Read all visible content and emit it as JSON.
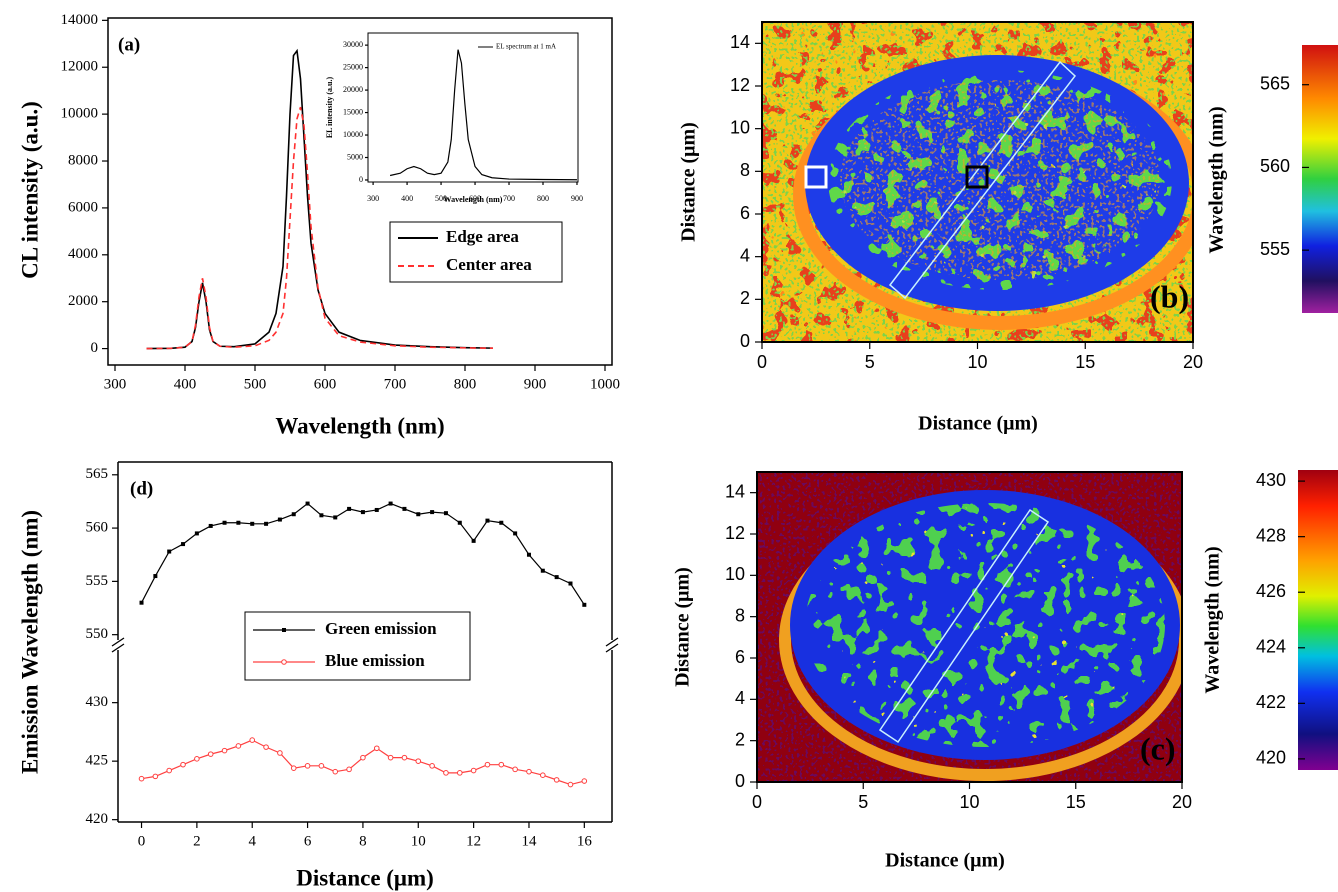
{
  "chart_data": [
    {
      "type": "line",
      "panel_label": "(a)",
      "xlabel": "Wavelength (nm)",
      "ylabel": "CL intensity (a.u.)",
      "x": [
        345,
        380,
        400,
        410,
        415,
        420,
        425,
        430,
        435,
        440,
        450,
        470,
        500,
        520,
        530,
        540,
        545,
        550,
        555,
        560,
        565,
        570,
        575,
        580,
        590,
        600,
        620,
        650,
        700,
        750,
        800,
        840
      ],
      "series": [
        {
          "name": "Edge area",
          "color": "#000000",
          "dash": "solid",
          "values": [
            0,
            10,
            60,
            300,
            900,
            2000,
            2800,
            2000,
            800,
            300,
            100,
            80,
            200,
            700,
            1500,
            3500,
            6500,
            10000,
            12500,
            12700,
            11500,
            9000,
            6500,
            4500,
            2500,
            1500,
            700,
            350,
            150,
            80,
            40,
            20
          ]
        },
        {
          "name": "Center area",
          "color": "#ff3030",
          "dash": "dashed",
          "values": [
            0,
            10,
            60,
            300,
            1000,
            2200,
            3000,
            2200,
            900,
            300,
            100,
            60,
            120,
            350,
            700,
            1500,
            3000,
            5500,
            8000,
            9800,
            10300,
            9500,
            7500,
            5200,
            2600,
            1300,
            550,
            280,
            120,
            60,
            30,
            15
          ]
        }
      ],
      "xlim": [
        290,
        1010
      ],
      "ylim": [
        -700,
        14100
      ],
      "xticks": [
        300,
        400,
        500,
        600,
        700,
        800,
        900,
        1000
      ],
      "yticks": [
        0,
        2000,
        4000,
        6000,
        8000,
        10000,
        12000,
        14000
      ],
      "legend": "center-right",
      "inset": {
        "type": "line",
        "xlabel": "Wavelength (nm)",
        "ylabel": "EL intensity (a.u.)",
        "x": [
          350,
          380,
          400,
          420,
          440,
          460,
          480,
          500,
          520,
          530,
          540,
          550,
          560,
          570,
          580,
          600,
          620,
          650,
          700,
          800,
          900
        ],
        "series": [
          {
            "name": "EL spectrum at 1 mA",
            "color": "#000000",
            "values": [
              1000,
              1500,
              2500,
              3000,
              2500,
              1500,
              1200,
              1500,
              4000,
              9000,
              20000,
              29000,
              26000,
              17000,
              9000,
              3000,
              1200,
              500,
              200,
              100,
              50
            ]
          }
        ],
        "xlim": [
          285,
          903
        ],
        "ylim": [
          -450,
          32700
        ],
        "xticks": [
          300,
          400,
          500,
          600,
          700,
          800,
          900
        ],
        "yticks": [
          0,
          5000,
          10000,
          15000,
          20000,
          25000,
          30000
        ]
      }
    },
    {
      "type": "heatmap",
      "panel_label": "(b)",
      "xlabel": "Distance (μm)",
      "ylabel": "Distance (μm)",
      "xlim": [
        0,
        20
      ],
      "ylim": [
        0,
        15
      ],
      "xticks": [
        0,
        5,
        10,
        15,
        20
      ],
      "yticks": [
        0,
        2,
        4,
        6,
        8,
        10,
        12,
        14
      ],
      "colorbar": {
        "label": "Wavelength (nm)",
        "lim": [
          551.2,
          567.4
        ],
        "ticks": [
          555,
          560,
          565
        ]
      }
    },
    {
      "type": "heatmap",
      "panel_label": "(c)",
      "xlabel": "Distance (μm)",
      "ylabel": "Distance (μm)",
      "xlim": [
        0,
        20
      ],
      "ylim": [
        0,
        15
      ],
      "xticks": [
        0,
        5,
        10,
        15,
        20
      ],
      "yticks": [
        0,
        2,
        4,
        6,
        8,
        10,
        12,
        14
      ],
      "colorbar": {
        "label": "Wavelength (nm)",
        "lim": [
          419.6,
          430.4
        ],
        "ticks": [
          420,
          422,
          424,
          426,
          428,
          430
        ]
      }
    },
    {
      "type": "broken-line",
      "panel_label": "(d)",
      "xlabel": "Distance (μm)",
      "ylabel": "Emission Wavelength (nm)",
      "x": [
        0,
        0.5,
        1,
        1.5,
        2,
        2.5,
        3,
        3.5,
        4,
        4.5,
        5,
        5.5,
        6,
        6.5,
        7,
        7.5,
        8,
        8.5,
        9,
        9.5,
        10,
        10.5,
        11,
        11.5,
        12,
        12.5,
        13,
        13.5,
        14,
        14.5,
        15,
        15.5,
        16
      ],
      "series": [
        {
          "name": "Green emission",
          "color": "#000000",
          "marker": "square",
          "segment": 0,
          "values": [
            553,
            555.5,
            557.8,
            558.5,
            559.5,
            560.2,
            560.5,
            560.5,
            560.4,
            560.4,
            560.8,
            561.3,
            562.3,
            561.2,
            561,
            561.8,
            561.5,
            561.7,
            562.3,
            561.8,
            561.3,
            561.5,
            561.4,
            560.5,
            558.8,
            560.7,
            560.5,
            559.5,
            557.5,
            556,
            555.4,
            554.8,
            552.8
          ]
        },
        {
          "name": "Blue emission",
          "color": "#ff4040",
          "marker": "circle",
          "segment": 1,
          "values": [
            423.5,
            423.7,
            424.2,
            424.7,
            425.2,
            425.6,
            425.9,
            426.3,
            426.8,
            426.2,
            425.7,
            424.4,
            424.6,
            424.6,
            424.1,
            424.3,
            425.3,
            426.1,
            425.3,
            425.3,
            425,
            424.6,
            424,
            424,
            424.2,
            424.7,
            424.7,
            424.3,
            424.1,
            423.8,
            423.4,
            423,
            423.3
          ]
        }
      ],
      "xlim": [
        -0.85,
        17
      ],
      "xticks": [
        0,
        2,
        4,
        6,
        8,
        10,
        12,
        14,
        16
      ],
      "y_segments": [
        {
          "ylim": [
            549.5,
            566.2
          ],
          "yticks": [
            550,
            555,
            560,
            565
          ]
        },
        {
          "ylim": [
            419.8,
            434.5
          ],
          "yticks": [
            420,
            425,
            430
          ]
        }
      ]
    }
  ]
}
